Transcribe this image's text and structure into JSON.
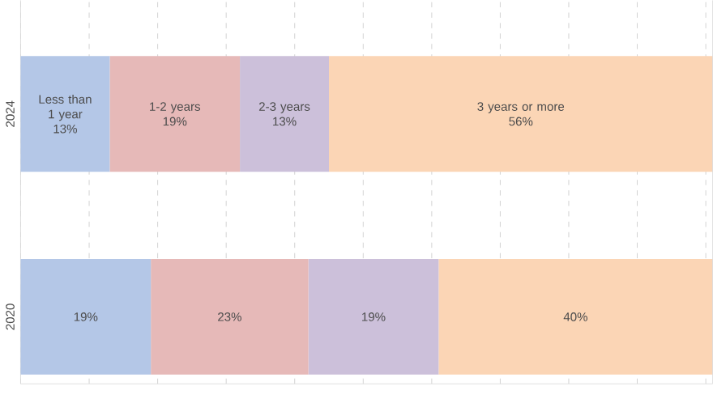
{
  "chart_data": {
    "type": "bar",
    "orientation": "horizontal",
    "stacked": true,
    "categories": [
      "2024",
      "2020"
    ],
    "series": [
      {
        "name": "Less than 1 year",
        "color": "#b4c7e7",
        "values": [
          13,
          19
        ],
        "value_labels": [
          "13%",
          "19%"
        ]
      },
      {
        "name": "1-2 years",
        "color": "#e6b9b8",
        "values": [
          19,
          23
        ],
        "value_labels": [
          "19%",
          "23%"
        ]
      },
      {
        "name": "2-3 years",
        "color": "#ccc0da",
        "values": [
          13,
          19
        ],
        "value_labels": [
          "13%",
          "19%"
        ]
      },
      {
        "name": "3 years or more",
        "color": "#fbd5b5",
        "values": [
          56,
          40
        ],
        "value_labels": [
          "56%",
          "40%"
        ]
      }
    ],
    "grid": "x",
    "tick_labels": "y",
    "legend": false
  }
}
